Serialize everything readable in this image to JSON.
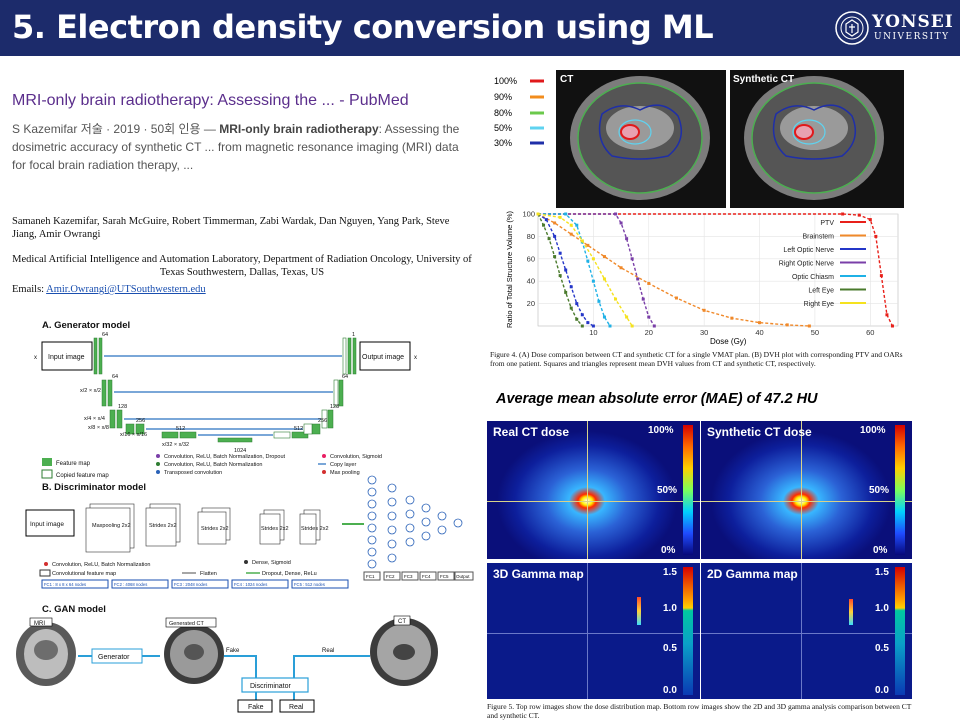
{
  "slide": {
    "title": "5. Electron density conversion using ML"
  },
  "logo": {
    "name": "YONSEI",
    "sub": "UNIVERSITY"
  },
  "reference": {
    "title": "MRI-only brain radiotherapy: Assessing the ... - PubMed",
    "meta_prefix": "S Kazemifar 저술 · 2019 · 50회 인용 — ",
    "meta_bold": "MRI-only brain radiotherapy",
    "meta_rest": ": Assessing the dosimetric accuracy of synthetic CT ... from magnetic resonance imaging (MRI) data for focal brain radiation therapy, ...",
    "authors": "Samaneh Kazemifar, Sarah McGuire, Robert Timmerman, Zabi Wardak, Dan Nguyen, Yang Park, Steve Jiang, Amir Owrangi",
    "affiliation": "Medical Artificial Intelligence and Automation Laboratory, Department of Radiation Oncology, University of Texas Southwestern, Dallas, Texas, US",
    "emails_label": "Emails: ",
    "emails_value": "Amir.Owrangi@UTSouthwestern.edu"
  },
  "arch": {
    "gen_title": "A. Generator model",
    "input_image": "Input image",
    "output_image": "Output image",
    "dims": [
      "x",
      "x/2 × x/2",
      "x/4 × x/4",
      "x/8 × x/8",
      "x/16 × x/16",
      "x/32 × x/32"
    ],
    "channels": [
      "64",
      "128",
      "256",
      "512",
      "1024",
      "512",
      "256",
      "128",
      "64",
      "1"
    ],
    "legend_gen": [
      "Feature map",
      "Copied feature map",
      "Convolution, ReLU, Batch Normalization, Dropout",
      "Convolution, ReLU, Batch Normalization",
      "Transposed convolution",
      "Convolution, Sigmoid",
      "Copy layer",
      "Max pooling"
    ],
    "disc_title": "B. Discriminator model",
    "disc_blocks": [
      "Maxpooling 2x2",
      "Strides 2x2",
      "Strides 2x2",
      "Strides 2x2",
      "Strides 2x2"
    ],
    "legend_disc": [
      "Convolution, ReLU, Batch Normalization",
      "Convolutional feature map",
      "Flatten",
      "Dropout, Dense, ReLu",
      "Dense, Sigmoid"
    ],
    "fc_nodes": [
      "FC1 : 8 x 8 x 64 nodes",
      "FC2 : 4068 nodes",
      "FC3 : 2048 nodes",
      "FC4 : 1024 nodes",
      "FC5 : 512 nodes"
    ],
    "fc_labels": [
      "FC1",
      "FC2",
      "FC3",
      "FC4",
      "FC5",
      "Output"
    ],
    "gan_title": "C. GAN model",
    "gan_mri": "MRI",
    "gan_generator": "Generator",
    "gan_generated": "Generated CT",
    "gan_ct": "CT",
    "gan_fake_arrow": "Fake",
    "gan_real_arrow": "Real",
    "gan_discriminator": "Discriminator",
    "gan_fake_box": "Fake",
    "gan_real_box": "Real"
  },
  "figure4": {
    "legend_pct": [
      "100%",
      "90%",
      "80%",
      "50%",
      "30%"
    ],
    "legend_colors": [
      "#e0191b",
      "#f28c1d",
      "#6bc94b",
      "#5fd3f0",
      "#1f2fa8"
    ],
    "ct_label": "CT",
    "sct_label": "Synthetic CT",
    "caption": "Figure 4. (A) Dose comparison between CT and synthetic CT for a single VMAT plan. (B) DVH plot with corresponding PTV and OARs from one patient. Squares and triangles represent mean DVH values from CT and synthetic CT, respectively."
  },
  "chart_data": {
    "type": "line",
    "xlabel": "Dose (Gy)",
    "ylabel": "Ratio of Total Structure Volume (%)",
    "xlim": [
      0,
      65
    ],
    "ylim": [
      0,
      100
    ],
    "xticks": [
      10,
      20,
      30,
      40,
      50,
      60
    ],
    "yticks": [
      20,
      40,
      60,
      80,
      100
    ],
    "grid": true,
    "legend_position": "top-right",
    "series": [
      {
        "name": "PTV",
        "color": "#e8201a",
        "x": [
          0,
          55,
          58,
          60,
          61,
          62,
          63,
          64
        ],
        "y": [
          100,
          100,
          99,
          95,
          80,
          45,
          10,
          0
        ]
      },
      {
        "name": "Brainstem",
        "color": "#f0892a",
        "x": [
          0,
          3,
          6,
          9,
          12,
          15,
          20,
          25,
          30,
          35,
          40,
          45,
          49
        ],
        "y": [
          100,
          92,
          82,
          72,
          62,
          52,
          38,
          25,
          14,
          7,
          3,
          1,
          0
        ]
      },
      {
        "name": "Left Optic Nerve",
        "color": "#2436c8",
        "x": [
          0,
          1.5,
          3,
          4,
          5,
          6,
          7,
          8,
          9,
          10
        ],
        "y": [
          100,
          95,
          80,
          65,
          50,
          35,
          20,
          10,
          3,
          0
        ]
      },
      {
        "name": "Right Optic Nerve",
        "color": "#7a3fa8",
        "x": [
          0,
          14,
          15,
          16,
          17,
          18,
          19,
          20,
          21
        ],
        "y": [
          100,
          100,
          92,
          78,
          60,
          42,
          24,
          8,
          0
        ]
      },
      {
        "name": "Optic Chiasm",
        "color": "#1fb1e6",
        "x": [
          0,
          5,
          7,
          8,
          9,
          10,
          11,
          12,
          13
        ],
        "y": [
          100,
          100,
          90,
          75,
          58,
          40,
          22,
          8,
          0
        ]
      },
      {
        "name": "Left Eye",
        "color": "#4a7a2c",
        "x": [
          0,
          1,
          2,
          3,
          4,
          5,
          6,
          7,
          8
        ],
        "y": [
          100,
          90,
          78,
          62,
          45,
          30,
          16,
          6,
          0
        ]
      },
      {
        "name": "Right Eye",
        "color": "#f5e21e",
        "x": [
          0,
          4,
          6,
          8,
          10,
          12,
          14,
          16,
          17
        ],
        "y": [
          100,
          97,
          90,
          76,
          60,
          42,
          24,
          8,
          0
        ]
      }
    ]
  },
  "mae": "Average mean absolute error (MAE) of 47.2 HU",
  "figure5": {
    "real_dose": "Real CT dose",
    "synth_dose": "Synthetic CT dose",
    "dose_ticks": [
      "100%",
      "50%",
      "0%"
    ],
    "gamma3d": "3D Gamma map",
    "gamma2d": "2D Gamma map",
    "gamma_ticks": [
      "1.5",
      "1.0",
      "0.5",
      "0.0"
    ],
    "caption": "Figure 5. Top row images show the dose distribution map. Bottom row images show the 2D and 3D gamma analysis comparison between CT and synthetic CT."
  }
}
